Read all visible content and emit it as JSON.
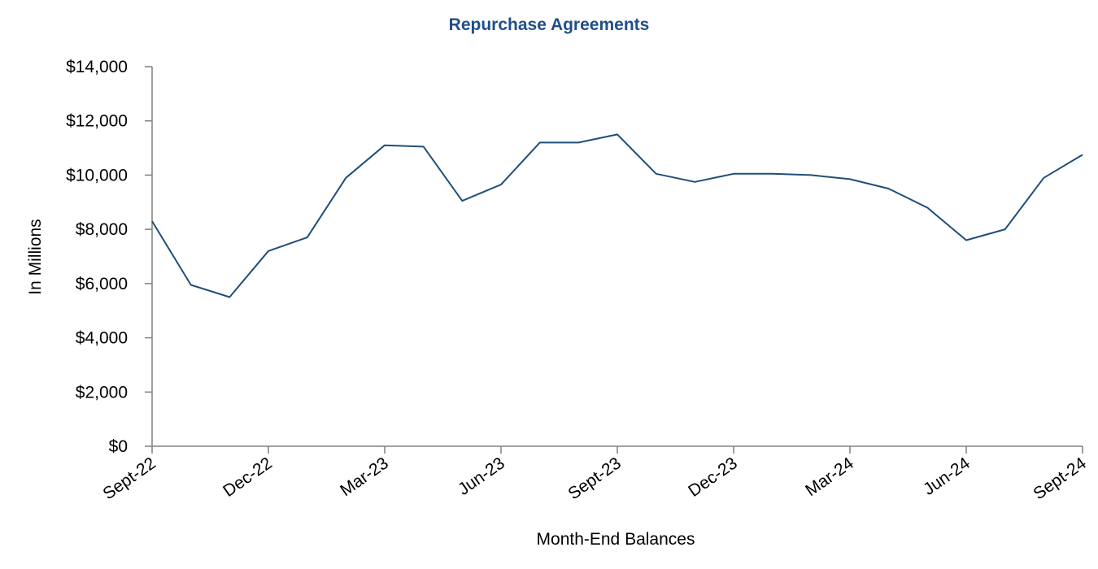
{
  "colors": {
    "title": "#1F4E8C",
    "line": "#1F4E79",
    "axis": "#808080",
    "text": "#000000"
  },
  "chart_data": {
    "type": "line",
    "title": "Repurchase Agreements",
    "xlabel": "Month-End Balances",
    "ylabel": "In Millions",
    "ylim": [
      0,
      14000
    ],
    "y_ticks": [
      0,
      2000,
      4000,
      6000,
      8000,
      10000,
      12000,
      14000
    ],
    "y_tick_labels": [
      "$0",
      "$2,000",
      "$4,000",
      "$6,000",
      "$8,000",
      "$10,000",
      "$12,000",
      "$14,000"
    ],
    "x_tick_labels": [
      "Sept-22",
      "Dec-22",
      "Mar-23",
      "Jun-23",
      "Sept-23",
      "Dec-23",
      "Mar-24",
      "Jun-24",
      "Sept-24"
    ],
    "x": [
      "Sep-22",
      "Oct-22",
      "Nov-22",
      "Dec-22",
      "Jan-23",
      "Feb-23",
      "Mar-23",
      "Apr-23",
      "May-23",
      "Jun-23",
      "Jul-23",
      "Aug-23",
      "Sep-23",
      "Oct-23",
      "Nov-23",
      "Dec-23",
      "Jan-24",
      "Feb-24",
      "Mar-24",
      "Apr-24",
      "May-24",
      "Jun-24",
      "Jul-24",
      "Aug-24",
      "Sep-24"
    ],
    "series": [
      {
        "values": [
          8300,
          5950,
          5500,
          7200,
          7700,
          9900,
          11100,
          11050,
          9050,
          9650,
          11200,
          11200,
          11500,
          10050,
          9750,
          10050,
          10050,
          10000,
          9850,
          9500,
          8800,
          7600,
          8000,
          9900,
          10750
        ]
      }
    ],
    "grid": false,
    "legend": "none"
  }
}
